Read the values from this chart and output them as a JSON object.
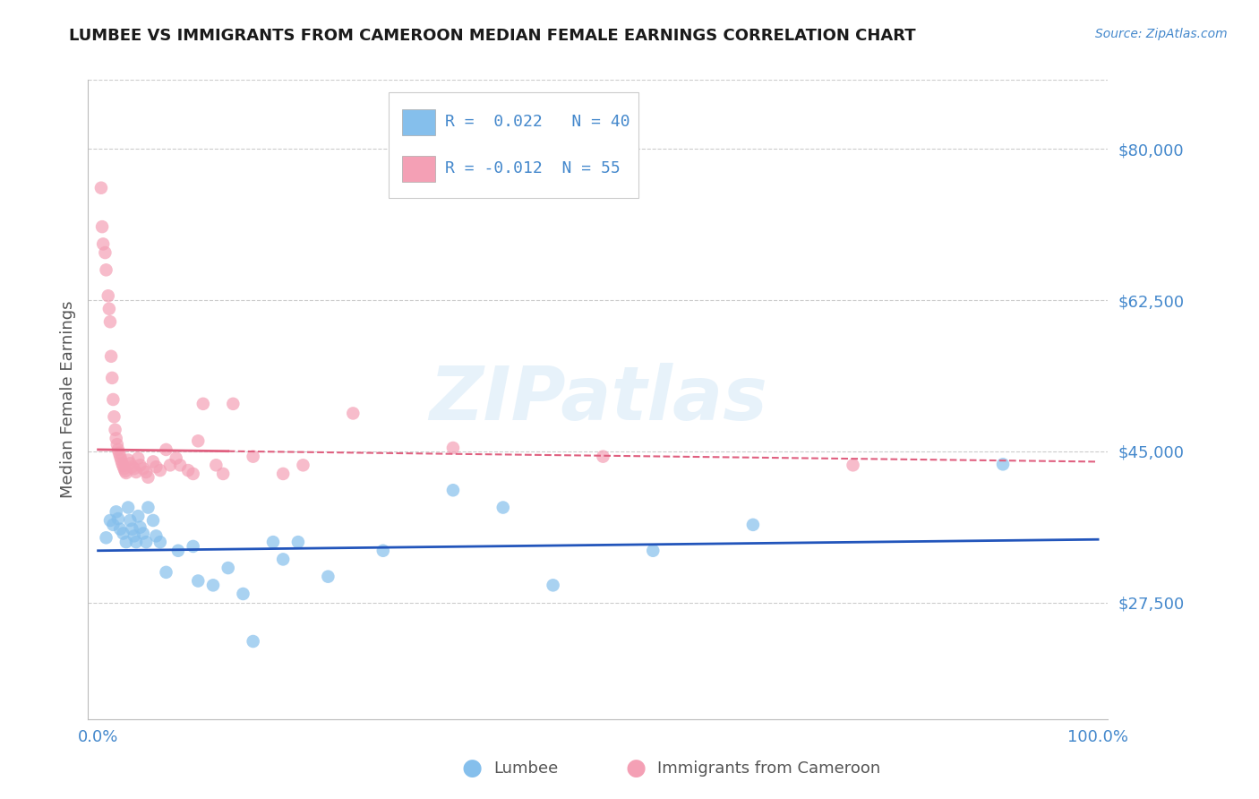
{
  "title": "LUMBEE VS IMMIGRANTS FROM CAMEROON MEDIAN FEMALE EARNINGS CORRELATION CHART",
  "source": "Source: ZipAtlas.com",
  "ylabel": "Median Female Earnings",
  "xlim": [
    -0.01,
    1.01
  ],
  "ylim": [
    14000,
    88000
  ],
  "yticks": [
    27500,
    45000,
    62500,
    80000
  ],
  "ytick_labels": [
    "$27,500",
    "$45,000",
    "$62,500",
    "$80,000"
  ],
  "xticks": [
    0.0,
    1.0
  ],
  "xtick_labels": [
    "0.0%",
    "100.0%"
  ],
  "background_color": "#ffffff",
  "grid_color": "#cccccc",
  "lumbee_color": "#85BFEC",
  "cameroon_color": "#F4A0B5",
  "lumbee_line_color": "#2255BB",
  "cameroon_line_color": "#E06080",
  "legend_lumbee_label": "Lumbee",
  "legend_cameroon_label": "Immigrants from Cameroon",
  "lumbee_R_text": "R =  0.022",
  "lumbee_N_text": "N = 40",
  "cameroon_R_text": "R = -0.012",
  "cameroon_N_text": "N = 55",
  "title_color": "#1a1a1a",
  "axis_label_color": "#555555",
  "tick_label_color": "#4488CC",
  "watermark": "ZIPatlas",
  "lumbee_line_y0": 33500,
  "lumbee_line_y1": 34800,
  "cameroon_line_y0": 45200,
  "cameroon_line_y1": 43800,
  "lumbee_x": [
    0.008,
    0.012,
    0.015,
    0.018,
    0.02,
    0.022,
    0.025,
    0.028,
    0.03,
    0.032,
    0.034,
    0.036,
    0.038,
    0.04,
    0.042,
    0.045,
    0.048,
    0.05,
    0.055,
    0.058,
    0.062,
    0.068,
    0.08,
    0.095,
    0.1,
    0.115,
    0.13,
    0.145,
    0.155,
    0.175,
    0.185,
    0.2,
    0.23,
    0.285,
    0.355,
    0.405,
    0.455,
    0.555,
    0.655,
    0.905
  ],
  "lumbee_y": [
    35000,
    37000,
    36500,
    38000,
    37200,
    36000,
    35500,
    34500,
    38500,
    37000,
    36000,
    35200,
    34500,
    37500,
    36200,
    35500,
    34500,
    38500,
    37000,
    35200,
    34500,
    31000,
    33500,
    34000,
    30000,
    29500,
    31500,
    28500,
    23000,
    34500,
    32500,
    34500,
    30500,
    33500,
    40500,
    38500,
    29500,
    33500,
    36500,
    43500
  ],
  "cameroon_x": [
    0.003,
    0.004,
    0.005,
    0.007,
    0.008,
    0.01,
    0.011,
    0.012,
    0.013,
    0.014,
    0.015,
    0.016,
    0.017,
    0.018,
    0.019,
    0.02,
    0.021,
    0.022,
    0.023,
    0.024,
    0.025,
    0.026,
    0.027,
    0.028,
    0.03,
    0.032,
    0.034,
    0.036,
    0.038,
    0.04,
    0.042,
    0.045,
    0.048,
    0.05,
    0.055,
    0.058,
    0.062,
    0.068,
    0.072,
    0.078,
    0.082,
    0.09,
    0.095,
    0.1,
    0.105,
    0.118,
    0.125,
    0.135,
    0.155,
    0.185,
    0.205,
    0.255,
    0.355,
    0.505,
    0.755
  ],
  "cameroon_y": [
    75500,
    71000,
    69000,
    68000,
    66000,
    63000,
    61500,
    60000,
    56000,
    53500,
    51000,
    49000,
    47500,
    46500,
    45800,
    45200,
    44800,
    44400,
    44000,
    43600,
    43300,
    43000,
    42700,
    42500,
    44000,
    43600,
    43200,
    43000,
    42600,
    44200,
    43400,
    43000,
    42600,
    42000,
    43800,
    43200,
    42800,
    45200,
    43400,
    44200,
    43400,
    42800,
    42400,
    46200,
    50500,
    43400,
    42400,
    50500,
    44400,
    42400,
    43400,
    49400,
    45400,
    44400,
    43400
  ]
}
